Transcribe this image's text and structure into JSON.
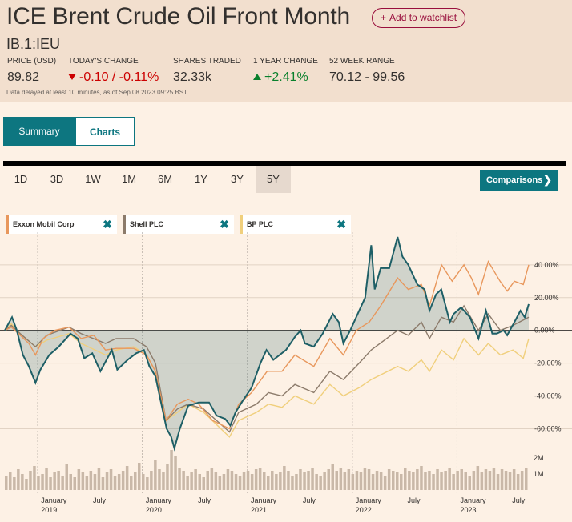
{
  "header": {
    "title": "ICE Brent Crude Oil Front Month",
    "watchlist_label": "Add to watchlist",
    "symbol": "IB.1:IEU",
    "stats": [
      {
        "label": "PRICE (USD)",
        "value": "89.82"
      },
      {
        "label": "TODAY'S CHANGE",
        "value": "-0.10 / -0.11%"
      },
      {
        "label": "SHARES TRADED",
        "value": "32.33k"
      },
      {
        "label": "1 YEAR CHANGE",
        "value": "+2.41%"
      },
      {
        "label": "52 WEEK RANGE",
        "value": "70.12 - 99.56"
      }
    ],
    "delay_note": "Data delayed at least 10 minutes, as of Sep 08 2023 09:25 BST."
  },
  "tabs": [
    {
      "label": "Summary",
      "active": true
    },
    {
      "label": "Charts",
      "active": false
    }
  ],
  "ranges": [
    {
      "label": "1D",
      "active": false
    },
    {
      "label": "3D",
      "active": false
    },
    {
      "label": "1W",
      "active": false
    },
    {
      "label": "1M",
      "active": false
    },
    {
      "label": "6M",
      "active": false
    },
    {
      "label": "1Y",
      "active": false
    },
    {
      "label": "3Y",
      "active": false
    },
    {
      "label": "5Y",
      "active": true
    }
  ],
  "comparisons_label": "Comparisons",
  "icons": {
    "watchlist": "plus-icon",
    "down": "arrow-down-icon",
    "up": "arrow-up-icon",
    "remove": "close-icon",
    "chevron": "chevron-right-icon"
  },
  "colors": {
    "main": "#1e5f66",
    "exxon": "#e8975c",
    "shell": "#8c7b6b",
    "bp": "#f0cf7c",
    "negative": "#cc0000",
    "positive": "#09802c",
    "accent": "#0d7680"
  },
  "chart_data": {
    "type": "line",
    "x_axis": {
      "ticks": [
        {
          "date": "2019-01-01",
          "label": "January",
          "sublabel": "2019"
        },
        {
          "date": "2019-07-01",
          "label": "July",
          "sublabel": ""
        },
        {
          "date": "2020-01-01",
          "label": "January",
          "sublabel": "2020"
        },
        {
          "date": "2020-07-01",
          "label": "July",
          "sublabel": ""
        },
        {
          "date": "2021-01-01",
          "label": "January",
          "sublabel": "2021"
        },
        {
          "date": "2021-07-01",
          "label": "July",
          "sublabel": ""
        },
        {
          "date": "2022-01-01",
          "label": "January",
          "sublabel": "2022"
        },
        {
          "date": "2022-07-01",
          "label": "July",
          "sublabel": ""
        },
        {
          "date": "2023-01-01",
          "label": "January",
          "sublabel": "2023"
        },
        {
          "date": "2023-07-01",
          "label": "July",
          "sublabel": ""
        }
      ],
      "range": [
        "2018-09-08",
        "2023-09-08"
      ]
    },
    "y_axis": {
      "ticks": [
        40,
        20,
        0,
        -20,
        -40,
        -60
      ],
      "unit": "%",
      "range": [
        -72,
        58
      ],
      "tick_labels": [
        "40.00%",
        "20.00%",
        "0.00%",
        "-20.00%",
        "-40.00%",
        "-60.00%"
      ]
    },
    "volume_axis": {
      "tick_labels": [
        "2M",
        "1M"
      ],
      "max_millions": 2.6
    },
    "series": [
      {
        "name": "ICE Brent Crude Oil Front Month",
        "key": "main",
        "points": [
          [
            "2018-09-08",
            0
          ],
          [
            "2018-10-03",
            8
          ],
          [
            "2018-10-20",
            0
          ],
          [
            "2018-11-10",
            -15
          ],
          [
            "2018-12-01",
            -22
          ],
          [
            "2018-12-24",
            -32
          ],
          [
            "2019-01-10",
            -24
          ],
          [
            "2019-02-10",
            -15
          ],
          [
            "2019-03-15",
            -10
          ],
          [
            "2019-04-25",
            -2
          ],
          [
            "2019-05-20",
            -5
          ],
          [
            "2019-06-12",
            -17
          ],
          [
            "2019-07-10",
            -14
          ],
          [
            "2019-08-07",
            -25
          ],
          [
            "2019-09-16",
            -12
          ],
          [
            "2019-10-05",
            -24
          ],
          [
            "2019-11-10",
            -18
          ],
          [
            "2019-12-10",
            -14
          ],
          [
            "2020-01-06",
            -12
          ],
          [
            "2020-01-25",
            -22
          ],
          [
            "2020-02-15",
            -28
          ],
          [
            "2020-03-09",
            -47
          ],
          [
            "2020-03-25",
            -60
          ],
          [
            "2020-04-10",
            -65
          ],
          [
            "2020-04-21",
            -72
          ],
          [
            "2020-05-10",
            -60
          ],
          [
            "2020-06-08",
            -46
          ],
          [
            "2020-07-15",
            -44
          ],
          [
            "2020-08-20",
            -44
          ],
          [
            "2020-09-15",
            -52
          ],
          [
            "2020-10-15",
            -54
          ],
          [
            "2020-11-02",
            -58
          ],
          [
            "2020-11-20",
            -50
          ],
          [
            "2020-12-15",
            -43
          ],
          [
            "2021-01-15",
            -35
          ],
          [
            "2021-02-15",
            -20
          ],
          [
            "2021-03-08",
            -12
          ],
          [
            "2021-04-01",
            -18
          ],
          [
            "2021-05-15",
            -12
          ],
          [
            "2021-06-15",
            -4
          ],
          [
            "2021-07-05",
            0
          ],
          [
            "2021-07-20",
            -8
          ],
          [
            "2021-08-20",
            -10
          ],
          [
            "2021-09-20",
            -2
          ],
          [
            "2021-10-25",
            10
          ],
          [
            "2021-11-15",
            5
          ],
          [
            "2021-12-01",
            -8
          ],
          [
            "2021-12-25",
            0
          ],
          [
            "2022-01-25",
            12
          ],
          [
            "2022-02-15",
            20
          ],
          [
            "2022-03-08",
            52
          ],
          [
            "2022-03-20",
            25
          ],
          [
            "2022-04-10",
            38
          ],
          [
            "2022-05-10",
            38
          ],
          [
            "2022-06-08",
            57
          ],
          [
            "2022-06-25",
            45
          ],
          [
            "2022-07-15",
            40
          ],
          [
            "2022-08-16",
            28
          ],
          [
            "2022-09-10",
            25
          ],
          [
            "2022-09-27",
            12
          ],
          [
            "2022-10-20",
            22
          ],
          [
            "2022-11-07",
            25
          ],
          [
            "2022-12-07",
            5
          ],
          [
            "2022-12-20",
            10
          ],
          [
            "2023-01-15",
            14
          ],
          [
            "2023-02-15",
            8
          ],
          [
            "2023-03-17",
            -5
          ],
          [
            "2023-04-12",
            12
          ],
          [
            "2023-05-04",
            -2
          ],
          [
            "2023-05-20",
            -2
          ],
          [
            "2023-06-12",
            0
          ],
          [
            "2023-06-25",
            -3
          ],
          [
            "2023-07-20",
            5
          ],
          [
            "2023-08-10",
            12
          ],
          [
            "2023-08-25",
            8
          ],
          [
            "2023-09-08",
            16
          ]
        ]
      },
      {
        "name": "Exxon Mobil Corp",
        "key": "exxon",
        "points": [
          [
            "2018-09-08",
            0
          ],
          [
            "2018-10-01",
            2
          ],
          [
            "2018-11-01",
            -3
          ],
          [
            "2018-12-01",
            -8
          ],
          [
            "2018-12-24",
            -15
          ],
          [
            "2019-01-20",
            -5
          ],
          [
            "2019-03-01",
            0
          ],
          [
            "2019-04-20",
            2
          ],
          [
            "2019-06-01",
            -5
          ],
          [
            "2019-07-15",
            -3
          ],
          [
            "2019-08-25",
            -12
          ],
          [
            "2019-10-01",
            -11
          ],
          [
            "2019-12-01",
            -11
          ],
          [
            "2020-01-15",
            -15
          ],
          [
            "2020-02-15",
            -25
          ],
          [
            "2020-03-23",
            -55
          ],
          [
            "2020-05-01",
            -45
          ],
          [
            "2020-06-08",
            -42
          ],
          [
            "2020-07-15",
            -45
          ],
          [
            "2020-09-01",
            -55
          ],
          [
            "2020-10-30",
            -60
          ],
          [
            "2020-12-01",
            -45
          ],
          [
            "2021-01-15",
            -38
          ],
          [
            "2021-03-10",
            -25
          ],
          [
            "2021-05-01",
            -25
          ],
          [
            "2021-06-15",
            -15
          ],
          [
            "2021-08-20",
            -22
          ],
          [
            "2021-10-15",
            -5
          ],
          [
            "2021-12-01",
            -15
          ],
          [
            "2022-01-15",
            0
          ],
          [
            "2022-03-01",
            5
          ],
          [
            "2022-04-10",
            15
          ],
          [
            "2022-06-08",
            32
          ],
          [
            "2022-07-15",
            25
          ],
          [
            "2022-08-30",
            28
          ],
          [
            "2022-09-27",
            15
          ],
          [
            "2022-11-08",
            40
          ],
          [
            "2022-12-15",
            30
          ],
          [
            "2023-01-25",
            40
          ],
          [
            "2023-02-20",
            32
          ],
          [
            "2023-03-17",
            22
          ],
          [
            "2023-04-20",
            42
          ],
          [
            "2023-05-31",
            30
          ],
          [
            "2023-06-25",
            24
          ],
          [
            "2023-07-20",
            30
          ],
          [
            "2023-08-20",
            28
          ],
          [
            "2023-09-08",
            40
          ]
        ]
      },
      {
        "name": "Shell PLC",
        "key": "shell",
        "points": [
          [
            "2018-09-08",
            0
          ],
          [
            "2018-10-01",
            3
          ],
          [
            "2018-11-01",
            -2
          ],
          [
            "2018-12-24",
            -10
          ],
          [
            "2019-02-01",
            -3
          ],
          [
            "2019-04-20",
            2
          ],
          [
            "2019-06-01",
            -2
          ],
          [
            "2019-08-25",
            -8
          ],
          [
            "2019-10-01",
            -5
          ],
          [
            "2019-12-01",
            -5
          ],
          [
            "2020-01-15",
            -10
          ],
          [
            "2020-02-15",
            -20
          ],
          [
            "2020-03-23",
            -55
          ],
          [
            "2020-05-01",
            -48
          ],
          [
            "2020-06-08",
            -45
          ],
          [
            "2020-08-01",
            -48
          ],
          [
            "2020-10-30",
            -62
          ],
          [
            "2020-12-01",
            -50
          ],
          [
            "2021-02-01",
            -45
          ],
          [
            "2021-03-15",
            -38
          ],
          [
            "2021-05-01",
            -40
          ],
          [
            "2021-06-15",
            -33
          ],
          [
            "2021-08-20",
            -38
          ],
          [
            "2021-10-15",
            -25
          ],
          [
            "2021-12-01",
            -30
          ],
          [
            "2022-01-25",
            -20
          ],
          [
            "2022-03-08",
            -12
          ],
          [
            "2022-06-08",
            0
          ],
          [
            "2022-07-15",
            -3
          ],
          [
            "2022-08-30",
            5
          ],
          [
            "2022-09-27",
            -5
          ],
          [
            "2022-11-08",
            8
          ],
          [
            "2022-12-20",
            5
          ],
          [
            "2023-01-25",
            15
          ],
          [
            "2023-03-17",
            0
          ],
          [
            "2023-04-20",
            10
          ],
          [
            "2023-06-01",
            0
          ],
          [
            "2023-07-15",
            3
          ],
          [
            "2023-09-08",
            8
          ]
        ]
      },
      {
        "name": "BP PLC",
        "key": "bp",
        "points": [
          [
            "2018-09-08",
            0
          ],
          [
            "2018-10-01",
            4
          ],
          [
            "2018-11-01",
            -2
          ],
          [
            "2018-12-24",
            -10
          ],
          [
            "2019-02-01",
            -6
          ],
          [
            "2019-04-20",
            -2
          ],
          [
            "2019-06-01",
            -8
          ],
          [
            "2019-08-25",
            -15
          ],
          [
            "2019-10-01",
            -12
          ],
          [
            "2019-12-01",
            -10
          ],
          [
            "2020-01-15",
            -15
          ],
          [
            "2020-02-15",
            -25
          ],
          [
            "2020-03-23",
            -55
          ],
          [
            "2020-05-01",
            -50
          ],
          [
            "2020-06-08",
            -45
          ],
          [
            "2020-08-01",
            -50
          ],
          [
            "2020-10-30",
            -65
          ],
          [
            "2020-12-01",
            -55
          ],
          [
            "2021-02-01",
            -50
          ],
          [
            "2021-03-15",
            -45
          ],
          [
            "2021-05-01",
            -47
          ],
          [
            "2021-06-15",
            -40
          ],
          [
            "2021-08-20",
            -45
          ],
          [
            "2021-10-15",
            -33
          ],
          [
            "2021-12-01",
            -40
          ],
          [
            "2022-01-25",
            -35
          ],
          [
            "2022-03-08",
            -30
          ],
          [
            "2022-06-08",
            -22
          ],
          [
            "2022-07-15",
            -25
          ],
          [
            "2022-08-30",
            -18
          ],
          [
            "2022-09-27",
            -25
          ],
          [
            "2022-11-08",
            -12
          ],
          [
            "2022-12-20",
            -18
          ],
          [
            "2023-01-25",
            -5
          ],
          [
            "2023-03-17",
            -15
          ],
          [
            "2023-04-20",
            -8
          ],
          [
            "2023-06-01",
            -15
          ],
          [
            "2023-07-15",
            -12
          ],
          [
            "2023-08-20",
            -17
          ],
          [
            "2023-09-08",
            -5
          ]
        ]
      }
    ],
    "volume_millions": [
      0.9,
      1.1,
      0.8,
      1.3,
      1.0,
      0.7,
      1.2,
      1.5,
      0.9,
      1.0,
      1.4,
      0.8,
      1.1,
      1.2,
      0.9,
      1.6,
      1.0,
      0.8,
      1.3,
      1.1,
      0.9,
      1.2,
      1.0,
      1.4,
      0.8,
      1.1,
      1.3,
      0.9,
      1.0,
      1.2,
      1.5,
      0.9,
      1.1,
      1.7,
      1.0,
      0.8,
      1.2,
      1.9,
      1.3,
      1.1,
      1.6,
      2.5,
      2.1,
      1.4,
      1.2,
      0.9,
      1.1,
      1.3,
      1.0,
      0.8,
      1.2,
      1.4,
      1.1,
      0.9,
      1.0,
      1.3,
      1.2,
      1.0,
      0.9,
      1.1,
      1.2,
      1.0,
      1.3,
      1.4,
      1.1,
      0.9,
      1.2,
      1.0,
      1.1,
      1.5,
      1.2,
      0.9,
      1.0,
      1.3,
      1.1,
      1.2,
      1.4,
      1.0,
      0.9,
      1.1,
      1.3,
      1.6,
      1.2,
      1.4,
      1.1,
      1.3,
      1.0,
      1.2,
      1.1,
      1.4,
      1.3,
      1.0,
      1.2,
      1.1,
      0.9,
      1.3,
      1.2,
      1.1,
      1.0,
      1.4,
      1.2,
      1.1,
      1.3,
      1.5,
      1.1,
      1.2,
      1.0,
      1.3,
      1.1,
      1.2,
      1.4,
      1.0,
      1.2,
      1.3,
      1.1,
      0.9,
      1.2,
      1.5,
      1.1,
      1.3,
      1.2,
      1.4,
      1.0,
      1.3,
      1.2,
      1.1,
      1.3,
      1.0,
      1.2,
      1.4
    ]
  }
}
